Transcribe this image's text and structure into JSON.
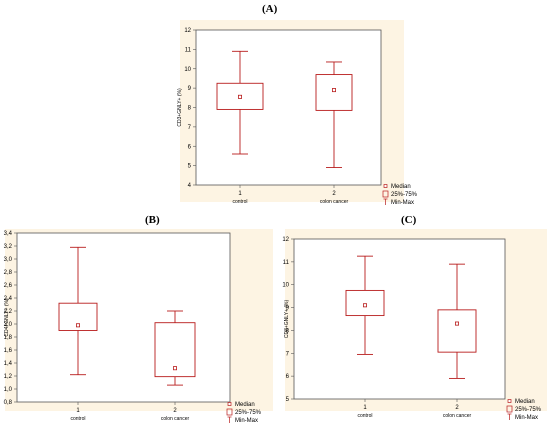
{
  "chart_data": [
    {
      "panel": "(A)",
      "type": "box",
      "ylabel": "CD3+GNLY+ (%)",
      "ylim": [
        4,
        12
      ],
      "yticks": [
        4,
        5,
        6,
        7,
        8,
        9,
        10,
        11,
        12
      ],
      "xticks": [
        "1",
        "2"
      ],
      "categories": [
        "control",
        "colon cancer"
      ],
      "boxes": [
        {
          "min": 5.6,
          "q1": 7.9,
          "median": 8.55,
          "q3": 9.25,
          "max": 10.9
        },
        {
          "min": 4.9,
          "q1": 7.85,
          "median": 8.9,
          "q3": 9.7,
          "max": 10.35
        }
      ],
      "legend": [
        "Median",
        "25%-75%",
        "Min-Max"
      ],
      "legend_position": "bottom-right",
      "grid": false
    },
    {
      "panel": "(B)",
      "type": "box",
      "ylabel": "CD4+GNLY+ (%)",
      "ylim": [
        0.8,
        3.4
      ],
      "yticks": [
        "0,8",
        "1,0",
        "1,2",
        "1,4",
        "1,6",
        "1,8",
        "2,0",
        "2,2",
        "2,4",
        "2,6",
        "2,8",
        "3,0",
        "3,2",
        "3,4"
      ],
      "ytick_values": [
        0.8,
        1.0,
        1.2,
        1.4,
        1.6,
        1.8,
        2.0,
        2.2,
        2.4,
        2.6,
        2.8,
        3.0,
        3.2,
        3.4
      ],
      "xticks": [
        "1",
        "2"
      ],
      "categories": [
        "control",
        "colon cancer"
      ],
      "boxes": [
        {
          "min": 1.22,
          "q1": 1.9,
          "median": 1.98,
          "q3": 2.32,
          "max": 3.18
        },
        {
          "min": 1.06,
          "q1": 1.19,
          "median": 1.32,
          "q3": 2.02,
          "max": 2.2
        }
      ],
      "legend": [
        "Median",
        "25%-75%",
        "Min-Max"
      ],
      "legend_position": "bottom-right",
      "grid": false
    },
    {
      "panel": "(C)",
      "type": "box",
      "ylabel": "CD8+GNLY+ (%)",
      "ylim": [
        5,
        12
      ],
      "yticks": [
        5,
        6,
        7,
        8,
        9,
        10,
        11,
        12
      ],
      "xticks": [
        "1",
        "2"
      ],
      "categories": [
        "control",
        "colon cancer"
      ],
      "boxes": [
        {
          "min": 6.95,
          "q1": 8.65,
          "median": 9.1,
          "q3": 9.75,
          "max": 11.25
        },
        {
          "min": 5.9,
          "q1": 7.05,
          "median": 8.3,
          "q3": 8.9,
          "max": 10.9
        }
      ],
      "legend": [
        "Median",
        "25%-75%",
        "Min-Max"
      ],
      "legend_position": "bottom-right",
      "grid": false
    }
  ],
  "colors": {
    "panel_bg": "#fdf4e3",
    "plot_bg": "#ffffff",
    "box": "#b81c1c",
    "axis": "#555555"
  }
}
